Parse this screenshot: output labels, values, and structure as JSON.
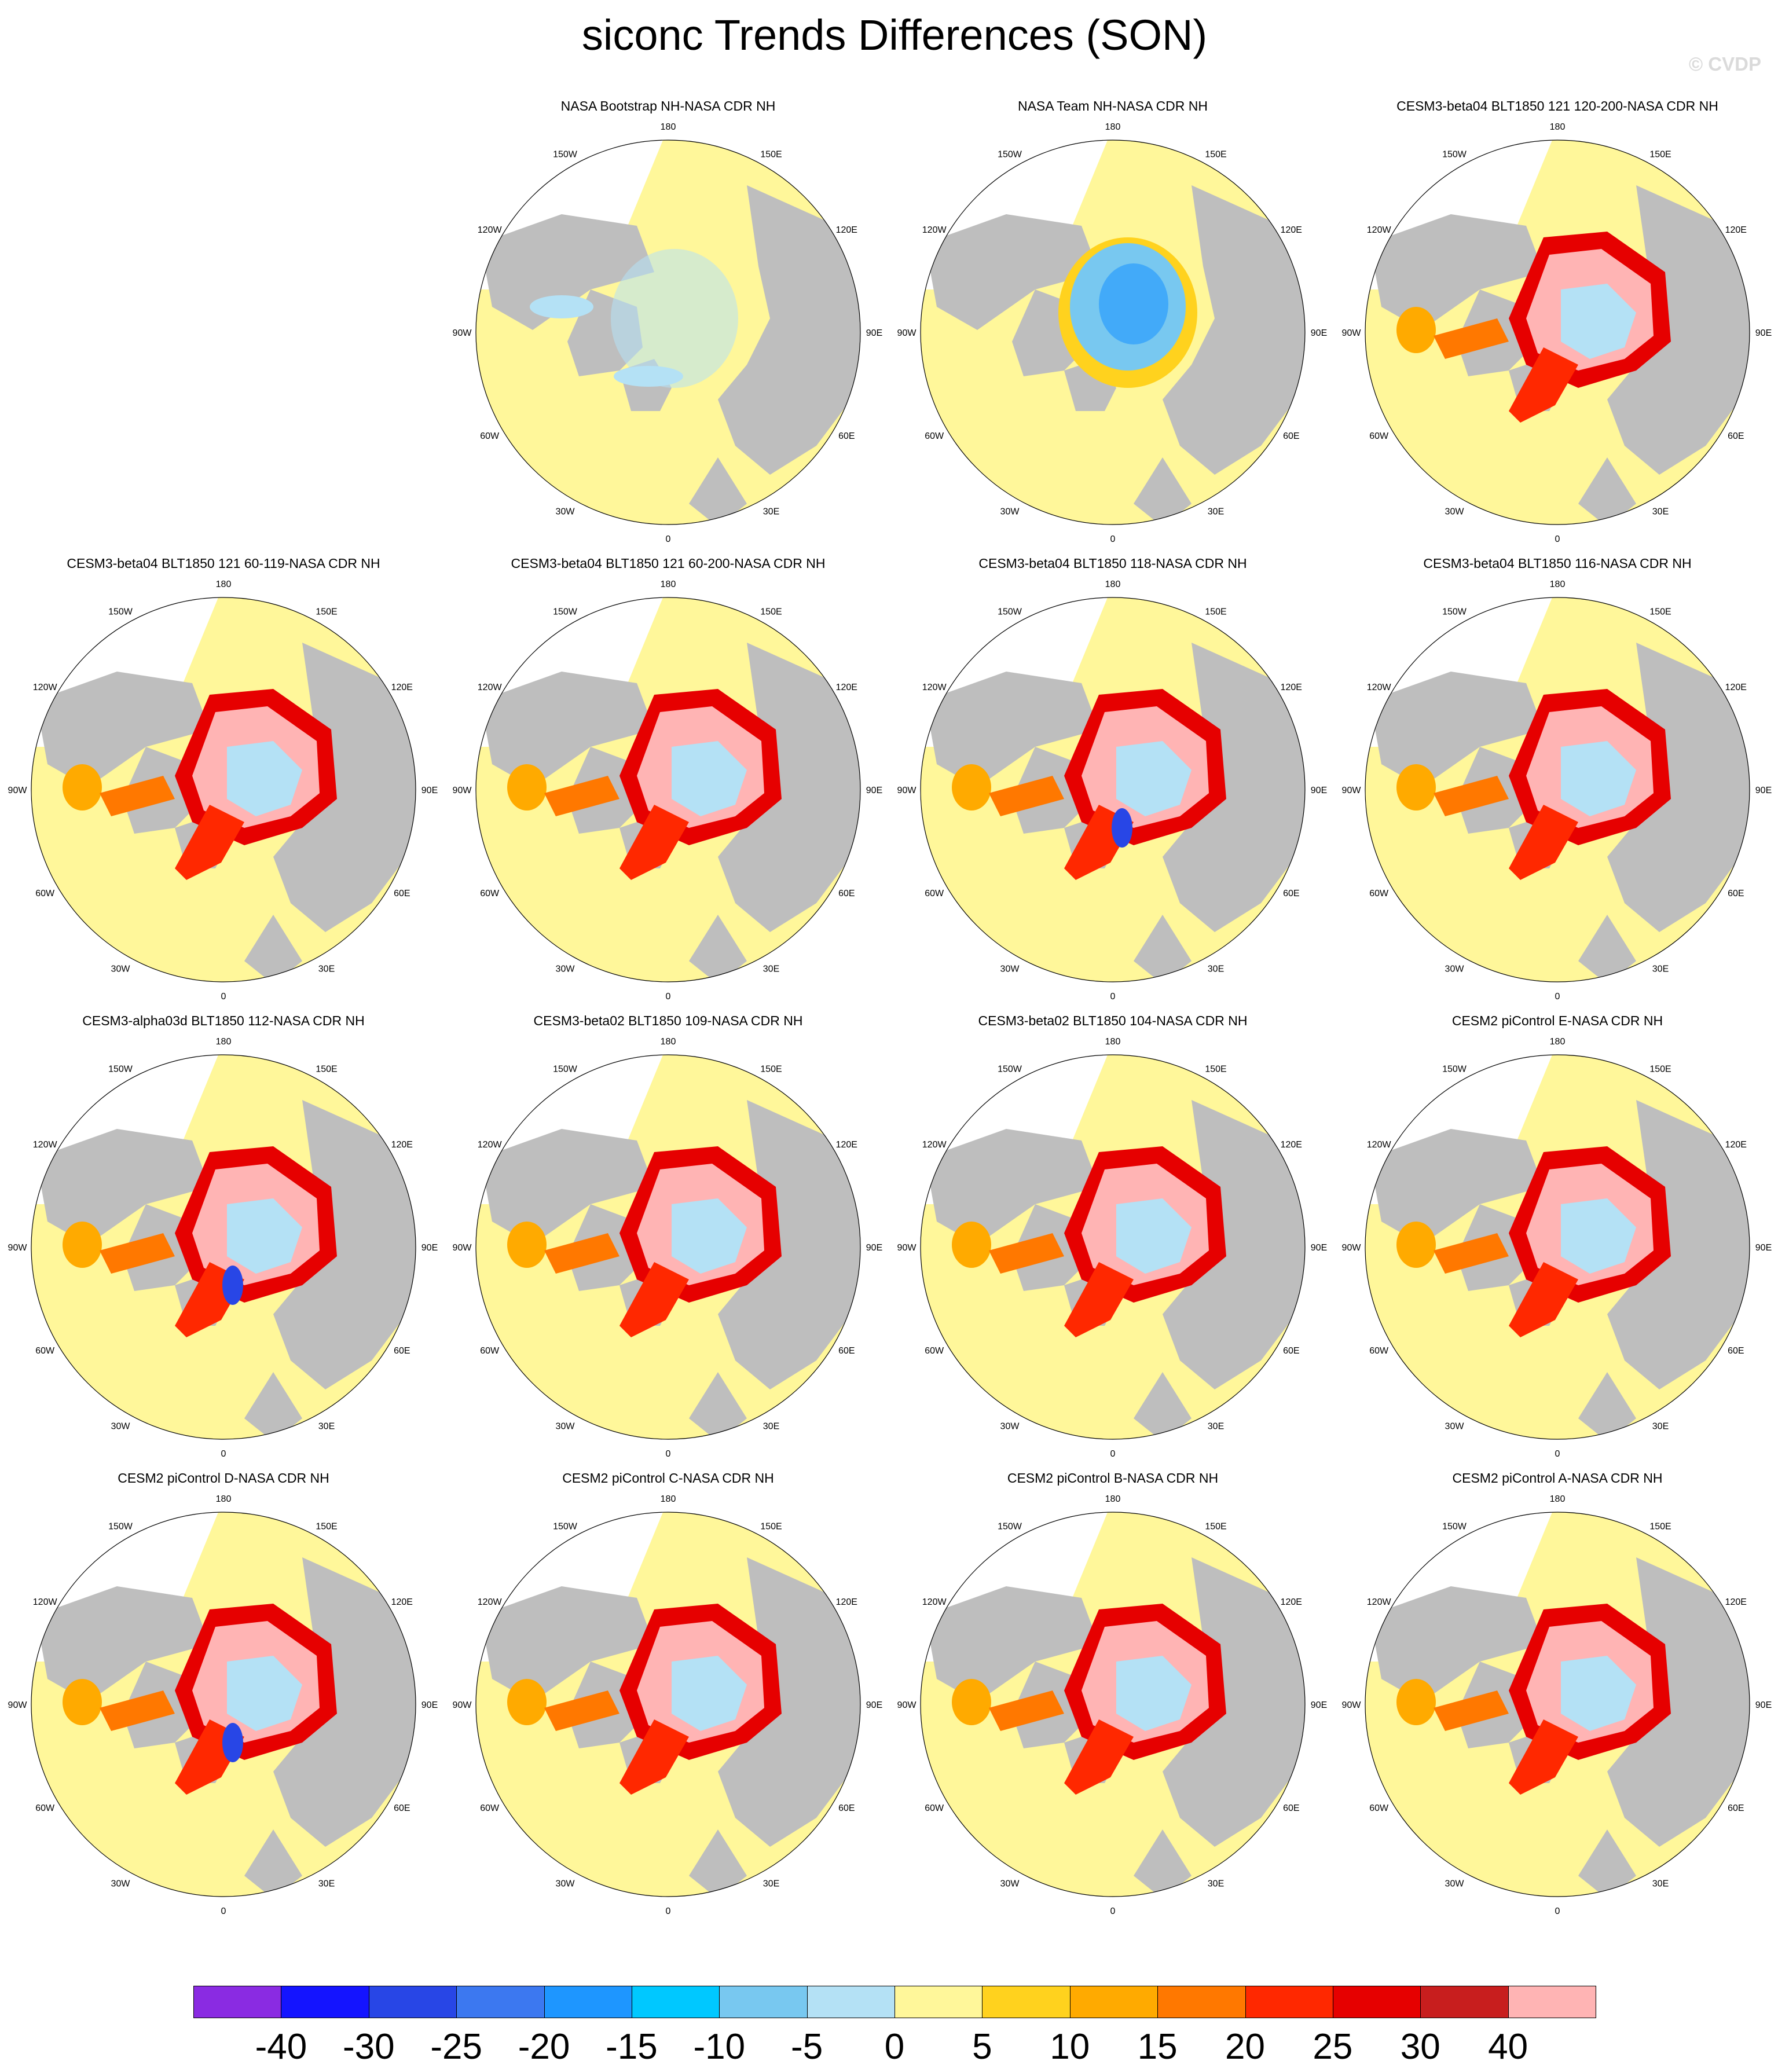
{
  "title": "siconc Trends Differences (SON)",
  "watermark": "© CVDP",
  "colors": {
    "land": "#bebebe",
    "zero_band": "#fff79a",
    "ocean_outer": "#ffffff"
  },
  "longitude_labels": [
    "180",
    "150E",
    "120E",
    "90E",
    "60E",
    "30E",
    "0",
    "30W",
    "60W",
    "90W",
    "120W",
    "150W"
  ],
  "panels": [
    {
      "title": "NASA Bootstrap NH-NASA CDR NH",
      "pattern": "obs-bootstrap"
    },
    {
      "title": "NASA Team NH-NASA CDR NH",
      "pattern": "obs-team"
    },
    {
      "title": "CESM3-beta04 BLT1850 121 120-200-NASA CDR NH",
      "pattern": "model"
    },
    {
      "title": "CESM3-beta04 BLT1850 121 60-119-NASA CDR NH",
      "pattern": "model"
    },
    {
      "title": "CESM3-beta04 BLT1850 121 60-200-NASA CDR NH",
      "pattern": "model"
    },
    {
      "title": "CESM3-beta04 BLT1850 118-NASA CDR NH",
      "pattern": "model-blue"
    },
    {
      "title": "CESM3-beta04 BLT1850 116-NASA CDR NH",
      "pattern": "model"
    },
    {
      "title": "CESM3-alpha03d BLT1850 112-NASA CDR NH",
      "pattern": "model-blue"
    },
    {
      "title": "CESM3-beta02 BLT1850 109-NASA CDR NH",
      "pattern": "model"
    },
    {
      "title": "CESM3-beta02 BLT1850 104-NASA CDR NH",
      "pattern": "model"
    },
    {
      "title": "CESM2 piControl E-NASA CDR NH",
      "pattern": "model"
    },
    {
      "title": "CESM2 piControl D-NASA CDR NH",
      "pattern": "model-blue"
    },
    {
      "title": "CESM2 piControl C-NASA CDR NH",
      "pattern": "model"
    },
    {
      "title": "CESM2 piControl B-NASA CDR NH",
      "pattern": "model"
    },
    {
      "title": "CESM2 piControl A-NASA CDR NH",
      "pattern": "model"
    }
  ],
  "colorbar": {
    "labels": [
      "-40",
      "-30",
      "-25",
      "-20",
      "-15",
      "-10",
      "-5",
      "0",
      "5",
      "10",
      "15",
      "20",
      "25",
      "30",
      "40"
    ],
    "colors": [
      "#8a2be2",
      "#1414ff",
      "#2846e6",
      "#3c78f0",
      "#1e96ff",
      "#00c8ff",
      "#78c8f0",
      "#b4e1f5",
      "#fff79a",
      "#ffd21e",
      "#ffaa00",
      "#ff7800",
      "#ff2800",
      "#e60000",
      "#c81e1e",
      "#ffb4b4"
    ]
  }
}
